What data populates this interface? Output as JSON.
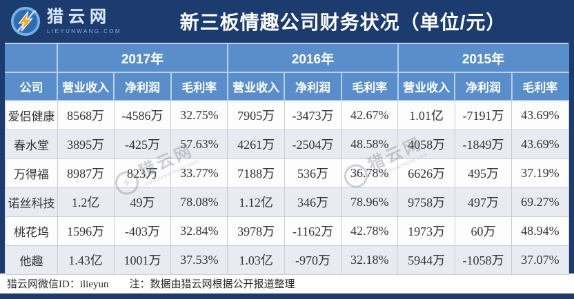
{
  "banner": {
    "logo_name": "猎云网",
    "logo_url": "LIEYUNWANG.COM",
    "title": "新三板情趣公司财务状况（单位/元）"
  },
  "chart_data": {
    "type": "table",
    "title": "新三板情趣公司财务状况（单位/元）",
    "company_column_header": "公司",
    "column_groups": [
      {
        "label": "2017年",
        "span": 3
      },
      {
        "label": "2016年",
        "span": 3
      },
      {
        "label": "2015年",
        "span": 3
      }
    ],
    "sub_headers": [
      "营业收入",
      "净利润",
      "毛利率"
    ],
    "rows": [
      {
        "company": "爱侣健康",
        "values": [
          "8568万",
          "-4586万",
          "32.75%",
          "7905万",
          "-3473万",
          "42.67%",
          "1.01亿",
          "-7191万",
          "43.69%"
        ]
      },
      {
        "company": "春水堂",
        "values": [
          "3895万",
          "-425万",
          "57.63%",
          "4261万",
          "-2504万",
          "48.58%",
          "4058万",
          "-1849万",
          "43.69%"
        ]
      },
      {
        "company": "万得福",
        "values": [
          "8987万",
          "823万",
          "33.77%",
          "7188万",
          "536万",
          "36.78%",
          "6626万",
          "495万",
          "37.19%"
        ]
      },
      {
        "company": "诺丝科技",
        "values": [
          "1.2亿",
          "49万",
          "78.08%",
          "1.12亿",
          "346万",
          "78.96%",
          "9758万",
          "497万",
          "69.27%"
        ]
      },
      {
        "company": "桃花坞",
        "values": [
          "1596万",
          "-403万",
          "32.84%",
          "3978万",
          "-1162万",
          "42.78%",
          "1973万",
          "60万",
          "48.94%"
        ]
      },
      {
        "company": "他趣",
        "values": [
          "1.43亿",
          "1001万",
          "37.53%",
          "1.03亿",
          "-970万",
          "32.18%",
          "5944万",
          "-1058万",
          "37.07%"
        ]
      }
    ]
  },
  "watermark": {
    "brand": "猎云网",
    "url": "www.lieyunwang.com"
  },
  "footer": {
    "wechat_id": "猎云网微信ID：ilieyun",
    "note": "注：数据由猎云网根据公开报道整理"
  },
  "colors": {
    "navy": "#1c3b6e",
    "header_blue": "#5a8ecb",
    "alt_row": "#e9ebf3",
    "row_white": "#fdfdfe",
    "border_gray": "#c9cdd4",
    "text_dark": "#333333",
    "logo_orange": "#f6a91d",
    "logo_circle_blue": "#2f6cb3",
    "logo_ring_blue": "#79b1e4"
  }
}
